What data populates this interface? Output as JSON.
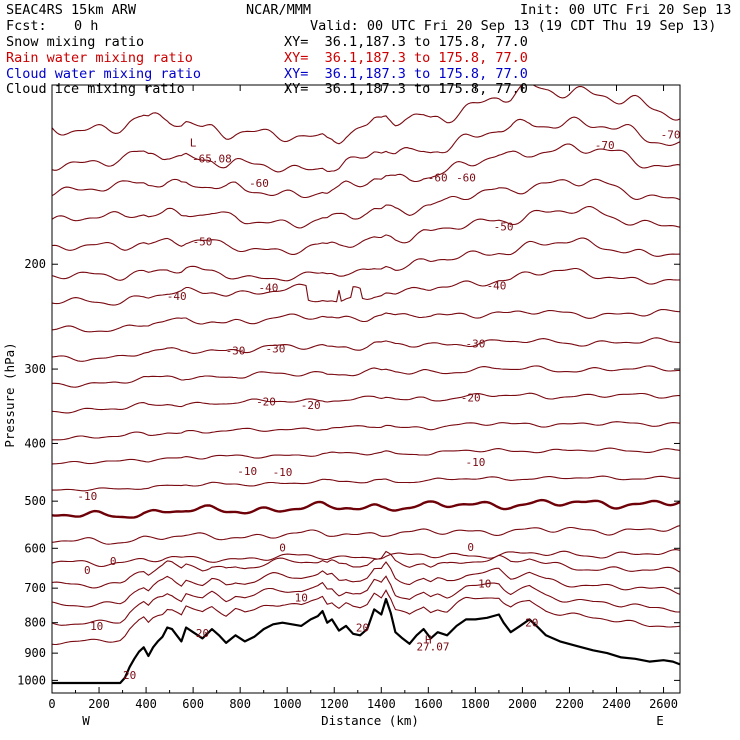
{
  "header": {
    "model": "SEAC4RS 15km ARW",
    "org": "NCAR/MMM",
    "init": "Init: 00 UTC Fri 20 Sep 13",
    "fcst_label": "Fcst:",
    "fcst_value": "0 h",
    "valid": "Valid: 00 UTC Fri 20 Sep 13 (19 CDT Thu 19 Sep 13)"
  },
  "fields": [
    {
      "name": "Snow mixing ratio",
      "xy": "XY=  36.1,187.3 to 175.8, 77.0",
      "color": "#000000"
    },
    {
      "name": "Rain water mixing ratio",
      "xy": "XY=  36.1,187.3 to 175.8, 77.0",
      "color": "#cc0000"
    },
    {
      "name": "Cloud water mixing ratio",
      "xy": "XY=  36.1,187.3 to 175.8, 77.0",
      "color": "#0000cc"
    },
    {
      "name": "Cloud ice mixing ratio",
      "xy": "XY=  36.1,187.3 to 175.8, 77.0",
      "color": "#000000"
    }
  ],
  "colors": {
    "contour": "#7a0a12",
    "zero_contour": "#6e0008",
    "terrain": "#000000"
  },
  "chart_data": {
    "type": "line",
    "xlabel": "Distance (km)",
    "ylabel": "Pressure (hPa)",
    "xlim": [
      0,
      2670
    ],
    "ylim": [
      1050,
      100
    ],
    "y_scale": "log",
    "x_ticks": [
      "0",
      "200",
      "400",
      "600",
      "800",
      "1000",
      "1200",
      "1400",
      "1600",
      "1800",
      "2000",
      "2200",
      "2400",
      "2600"
    ],
    "x_tick_values": [
      0,
      200,
      400,
      600,
      800,
      1000,
      1200,
      1400,
      1600,
      1800,
      2000,
      2200,
      2400,
      2600
    ],
    "y_ticks": [
      "200",
      "300",
      "400",
      "500",
      "600",
      "700",
      "800",
      "900",
      "1000"
    ],
    "y_tick_values": [
      200,
      300,
      400,
      500,
      600,
      700,
      800,
      900,
      1000
    ],
    "x_end_labels": {
      "left": "W",
      "right": "E"
    },
    "terrain": {
      "x": [
        0,
        150,
        290,
        310,
        330,
        350,
        370,
        390,
        410,
        430,
        450,
        470,
        490,
        510,
        530,
        550,
        570,
        600,
        640,
        680,
        710,
        740,
        780,
        820,
        860,
        900,
        940,
        980,
        1020,
        1060,
        1100,
        1130,
        1150,
        1170,
        1190,
        1220,
        1250,
        1280,
        1310,
        1340,
        1370,
        1400,
        1420,
        1440,
        1460,
        1490,
        1520,
        1550,
        1580,
        1610,
        1640,
        1680,
        1720,
        1760,
        1800,
        1850,
        1900,
        1920,
        1950,
        1990,
        2030,
        2060,
        2100,
        2160,
        2230,
        2300,
        2360,
        2420,
        2480,
        2540,
        2600,
        2640,
        2670
      ],
      "p": [
        1010,
        1010,
        1010,
        990,
        950,
        920,
        895,
        880,
        910,
        880,
        860,
        845,
        815,
        820,
        840,
        860,
        815,
        830,
        850,
        820,
        840,
        865,
        840,
        860,
        845,
        820,
        805,
        800,
        805,
        810,
        790,
        780,
        765,
        800,
        790,
        825,
        810,
        835,
        840,
        820,
        760,
        775,
        730,
        770,
        830,
        850,
        868,
        840,
        820,
        850,
        830,
        840,
        810,
        790,
        790,
        785,
        775,
        800,
        830,
        810,
        790,
        810,
        840,
        860,
        875,
        890,
        900,
        915,
        920,
        930,
        925,
        930,
        940
      ]
    },
    "temperature_contours": [
      {
        "value": -70,
        "p_left": 118,
        "p_right": 115
      },
      {
        "value": -65,
        "p_left": 135,
        "p_right": 128
      },
      {
        "value": -60,
        "p_left": 150,
        "p_right": 140
      },
      {
        "value": -55,
        "p_left": 168,
        "p_right": 158
      },
      {
        "value": -50,
        "p_left": 188,
        "p_right": 175
      },
      {
        "value": -45,
        "p_left": 210,
        "p_right": 196
      },
      {
        "value": -40,
        "p_left": 232,
        "p_right": 218
      },
      {
        "value": -35,
        "p_left": 258,
        "p_right": 244
      },
      {
        "value": -30,
        "p_left": 288,
        "p_right": 272
      },
      {
        "value": -25,
        "p_left": 318,
        "p_right": 302
      },
      {
        "value": -20,
        "p_left": 352,
        "p_right": 334
      },
      {
        "value": -15,
        "p_left": 392,
        "p_right": 372
      },
      {
        "value": -10,
        "p_left": 432,
        "p_right": 412
      },
      {
        "value": -5,
        "p_left": 480,
        "p_right": 458
      },
      {
        "value": 0,
        "p_left": 530,
        "p_right": 505
      },
      {
        "value": 5,
        "p_left": 585,
        "p_right": 560
      },
      {
        "value": 10,
        "p_left": 635,
        "p_right": 615
      },
      {
        "value": 15,
        "p_left": 690,
        "p_right": 672
      },
      {
        "value": 20,
        "p_left": 745,
        "p_right": 730
      },
      {
        "value": 25,
        "p_left": 800,
        "p_right": 790
      },
      {
        "value": 30,
        "p_left": 860,
        "p_right": 850
      }
    ],
    "contour_labels": [
      {
        "text": "-65.08",
        "x": 680,
        "p": 133
      },
      {
        "text": "-60",
        "x": 880,
        "p": 146
      },
      {
        "text": "-60",
        "x": 1640,
        "p": 143
      },
      {
        "text": "-60",
        "x": 1760,
        "p": 143
      },
      {
        "text": "-70",
        "x": 2350,
        "p": 126
      },
      {
        "text": "-70",
        "x": 2630,
        "p": 121
      },
      {
        "text": "-50",
        "x": 640,
        "p": 183
      },
      {
        "text": "-50",
        "x": 1920,
        "p": 173
      },
      {
        "text": "-40",
        "x": 530,
        "p": 226
      },
      {
        "text": "-40",
        "x": 920,
        "p": 219
      },
      {
        "text": "-40",
        "x": 1890,
        "p": 217
      },
      {
        "text": "-30",
        "x": 780,
        "p": 279
      },
      {
        "text": "-30",
        "x": 950,
        "p": 277
      },
      {
        "text": "-30",
        "x": 1800,
        "p": 272
      },
      {
        "text": "-20",
        "x": 910,
        "p": 340
      },
      {
        "text": "-20",
        "x": 1100,
        "p": 345
      },
      {
        "text": "-20",
        "x": 1780,
        "p": 335
      },
      {
        "text": "-10",
        "x": 830,
        "p": 445
      },
      {
        "text": "-10",
        "x": 980,
        "p": 447
      },
      {
        "text": "-10",
        "x": 1800,
        "p": 430
      },
      {
        "text": "-10",
        "x": 150,
        "p": 490
      },
      {
        "text": "0",
        "x": 980,
        "p": 598
      },
      {
        "text": "0",
        "x": 1780,
        "p": 597
      },
      {
        "text": "0",
        "x": 150,
        "p": 652
      },
      {
        "text": "0",
        "x": 260,
        "p": 630
      },
      {
        "text": "10",
        "x": 1060,
        "p": 726
      },
      {
        "text": "10",
        "x": 1840,
        "p": 688
      },
      {
        "text": "10",
        "x": 190,
        "p": 810
      },
      {
        "text": "20",
        "x": 640,
        "p": 832
      },
      {
        "text": "20",
        "x": 1320,
        "p": 815
      },
      {
        "text": "20",
        "x": 2040,
        "p": 800
      },
      {
        "text": "20",
        "x": 330,
        "p": 980
      },
      {
        "text": "27.07",
        "x": 1620,
        "p": 877
      }
    ],
    "markers": [
      {
        "text": "L",
        "x": 600,
        "p": 125
      },
      {
        "text": "H",
        "x": 1600,
        "p": 853
      }
    ]
  }
}
